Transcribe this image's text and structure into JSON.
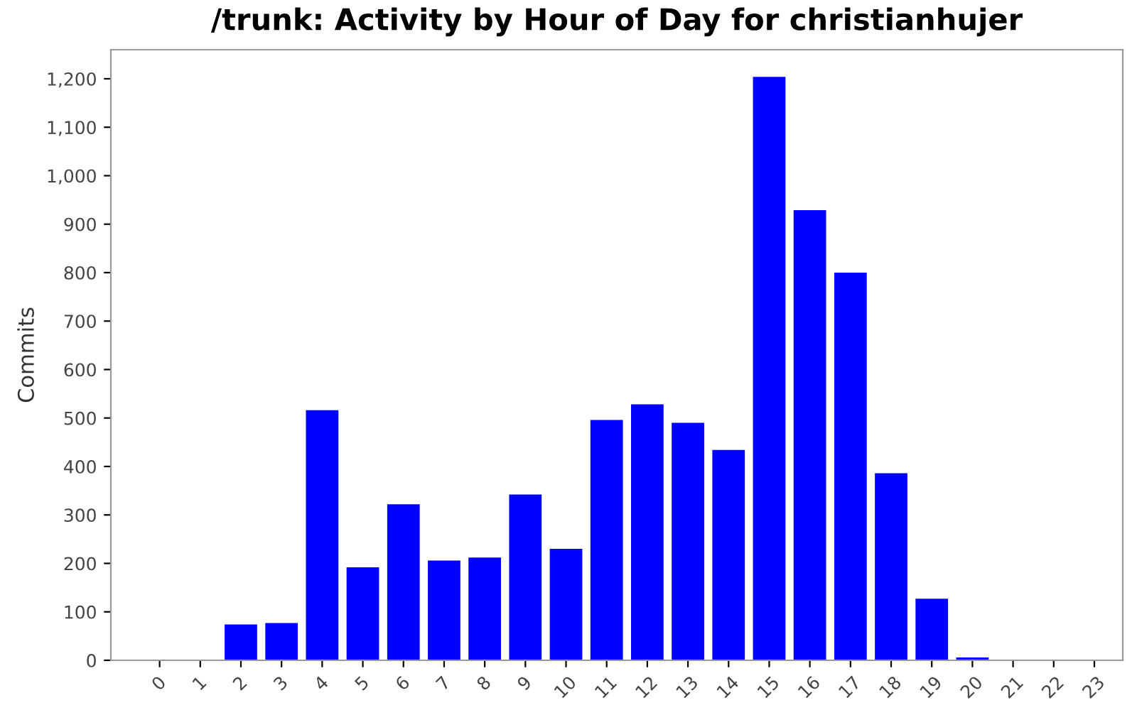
{
  "chart_data": {
    "type": "bar",
    "title": "/trunk: Activity by Hour of Day for christianhujer",
    "ylabel": "Commits",
    "categories": [
      "0",
      "1",
      "2",
      "3",
      "4",
      "5",
      "6",
      "7",
      "8",
      "9",
      "10",
      "11",
      "12",
      "13",
      "14",
      "15",
      "16",
      "17",
      "18",
      "19",
      "20",
      "21",
      "22",
      "23"
    ],
    "values": [
      0,
      0,
      74,
      77,
      516,
      192,
      322,
      206,
      212,
      342,
      230,
      496,
      528,
      490,
      434,
      1204,
      929,
      800,
      386,
      127,
      6,
      0,
      0,
      0
    ],
    "color": "#0000ff",
    "ylim": [
      0,
      1260
    ],
    "yticks": [
      0,
      {
        "value": 100,
        "label": "100"
      },
      {
        "value": 200,
        "label": "200"
      },
      {
        "value": 300,
        "label": "300"
      },
      {
        "value": 400,
        "label": "400"
      },
      {
        "value": 500,
        "label": "500"
      },
      {
        "value": 600,
        "label": "600"
      },
      {
        "value": 700,
        "label": "700"
      },
      {
        "value": 800,
        "label": "800"
      },
      {
        "value": 900,
        "label": "900"
      },
      {
        "value": 1000,
        "label": "1,000"
      },
      {
        "value": 1100,
        "label": "1,100"
      },
      {
        "value": 1200,
        "label": "1,200"
      }
    ],
    "grid": false,
    "legend": false
  }
}
